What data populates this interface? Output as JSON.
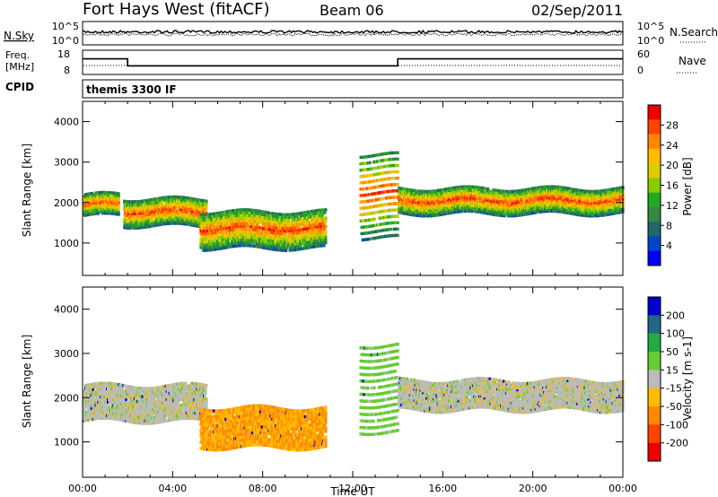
{
  "header": {
    "station": "Fort Hays West (fitACF)",
    "beam": "Beam 06",
    "date": "02/Sep/2011"
  },
  "noise_panel": {
    "left_label": "N.Sky",
    "right_label": "N.Search",
    "left_ticks": [
      "10^5",
      "10^0"
    ],
    "right_ticks": [
      "10^5",
      "10^0"
    ]
  },
  "freq_panel": {
    "left_label_1": "Freq.",
    "left_label_2": "[MHz]",
    "right_label": "Nave",
    "left_ticks": [
      "18",
      "8"
    ],
    "right_ticks": [
      "60",
      "0"
    ],
    "freq_series": [
      {
        "t0": 0.0,
        "t1": 2.0,
        "mhz": 15
      },
      {
        "t0": 2.0,
        "t1": 14.0,
        "mhz": 11
      },
      {
        "t0": 14.0,
        "t1": 24.0,
        "mhz": 15
      }
    ]
  },
  "cpid": {
    "label": "CPID",
    "value": "themis 3300 IF"
  },
  "chart_data": [
    {
      "type": "heatmap",
      "title": "",
      "xlabel": "",
      "ylabel": "Slant Range [km]",
      "colorbar_label": "Power [dB]",
      "colorbar_ticks": [
        "28",
        "24",
        "20",
        "16",
        "12",
        "8",
        "4"
      ],
      "colorbar_colors": [
        "#ee0000",
        "#ff4400",
        "#ff8800",
        "#ffbb00",
        "#ddcc00",
        "#88cc00",
        "#22aa22",
        "#338844",
        "#226666",
        "#0044cc",
        "#0000ff"
      ],
      "x_range_hours": [
        0,
        24
      ],
      "y_range_km": [
        200,
        4500
      ],
      "yticks": [
        "1000",
        "2000",
        "3000",
        "4000"
      ],
      "regions": [
        {
          "t0": 0.0,
          "t1": 1.6,
          "r0": 1650,
          "r1": 2200,
          "db": 26
        },
        {
          "t0": 1.8,
          "t1": 5.5,
          "r0": 1400,
          "r1": 2100,
          "db": 22
        },
        {
          "t0": 5.2,
          "t1": 10.8,
          "r0": 850,
          "r1": 1800,
          "db": 20
        },
        {
          "t0": 12.3,
          "t1": 14.0,
          "r0": 1100,
          "r1": 3300,
          "db": 22
        },
        {
          "t0": 14.0,
          "t1": 24.0,
          "r0": 1700,
          "r1": 2350,
          "db": 22
        }
      ]
    },
    {
      "type": "heatmap",
      "title": "",
      "xlabel": "Time UT",
      "ylabel": "Slant Range [km]",
      "colorbar_label": "Velocity [m s-1]",
      "colorbar_ticks": [
        "200",
        "100",
        "50",
        "15",
        "-15",
        "-50",
        "-100",
        "-200"
      ],
      "colorbar_colors": [
        "#0000cc",
        "#226688",
        "#22aa44",
        "#66cc33",
        "#bbbbbb",
        "#ffbb00",
        "#ff8800",
        "#ff4400",
        "#ee0000"
      ],
      "x_range_hours": [
        0,
        24
      ],
      "y_range_km": [
        200,
        4500
      ],
      "xticks": [
        "00:00",
        "04:00",
        "08:00",
        "12:00",
        "16:00",
        "20:00",
        "00:00"
      ],
      "yticks": [
        "1000",
        "2000",
        "3000",
        "4000"
      ],
      "regions": [
        {
          "t0": 0.0,
          "t1": 5.5,
          "r0": 1450,
          "r1": 2300,
          "velocity": 0
        },
        {
          "t0": 5.2,
          "t1": 10.8,
          "r0": 850,
          "r1": 1800,
          "velocity": -60
        },
        {
          "t0": 12.3,
          "t1": 14.0,
          "r0": 1200,
          "r1": 3300,
          "velocity": 30
        },
        {
          "t0": 14.0,
          "t1": 24.0,
          "r0": 1700,
          "r1": 2400,
          "velocity": 0
        }
      ]
    }
  ]
}
